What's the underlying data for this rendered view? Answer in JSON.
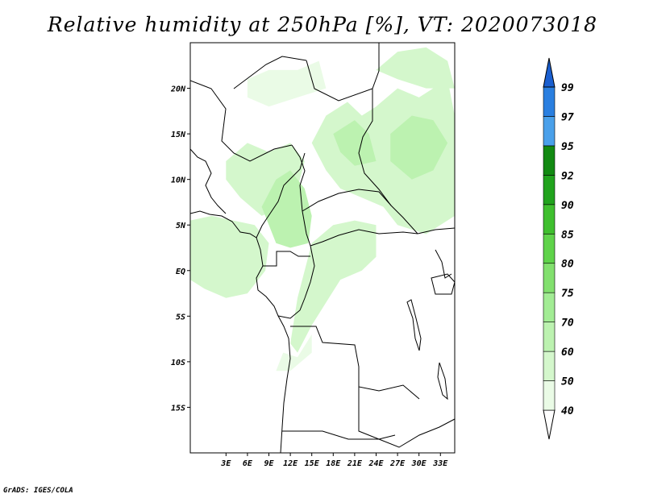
{
  "title": "Relative humidity at 250hPa [%], VT: 2020073018",
  "credit": "GrADS: IGES/COLA",
  "map": {
    "lon_range": [
      -2,
      35
    ],
    "lat_range": [
      -20,
      25
    ],
    "lat_ticks": [
      {
        "value": 20,
        "label": "20N"
      },
      {
        "value": 15,
        "label": "15N"
      },
      {
        "value": 10,
        "label": "10N"
      },
      {
        "value": 5,
        "label": "5N"
      },
      {
        "value": 0,
        "label": "EQ"
      },
      {
        "value": -5,
        "label": "5S"
      },
      {
        "value": -10,
        "label": "10S"
      },
      {
        "value": -15,
        "label": "15S"
      }
    ],
    "lon_ticks": [
      {
        "value": 3,
        "label": "3E"
      },
      {
        "value": 6,
        "label": "6E"
      },
      {
        "value": 9,
        "label": "9E"
      },
      {
        "value": 12,
        "label": "12E"
      },
      {
        "value": 15,
        "label": "15E"
      },
      {
        "value": 18,
        "label": "18E"
      },
      {
        "value": 21,
        "label": "21E"
      },
      {
        "value": 24,
        "label": "24E"
      },
      {
        "value": 27,
        "label": "27E"
      },
      {
        "value": 30,
        "label": "30E"
      },
      {
        "value": 33,
        "label": "33E"
      }
    ]
  },
  "colorbar": {
    "bins": [
      {
        "from": 40,
        "to": 50,
        "color": "#eafbe6"
      },
      {
        "from": 50,
        "to": 60,
        "color": "#d4f7cc"
      },
      {
        "from": 60,
        "to": 70,
        "color": "#bcf2b0"
      },
      {
        "from": 70,
        "to": 75,
        "color": "#a2ec94"
      },
      {
        "from": 75,
        "to": 80,
        "color": "#82e06e"
      },
      {
        "from": 80,
        "to": 85,
        "color": "#5fd34a"
      },
      {
        "from": 85,
        "to": 90,
        "color": "#3fbf2e"
      },
      {
        "from": 90,
        "to": 92,
        "color": "#21a31d"
      },
      {
        "from": 92,
        "to": 95,
        "color": "#128a12"
      },
      {
        "from": 95,
        "to": 97,
        "color": "#4aa0ea"
      },
      {
        "from": 97,
        "to": 99,
        "color": "#2a7fe0"
      }
    ],
    "under_color": "#ffffff",
    "over_color": "#1a5fd0",
    "labels": [
      "40",
      "50",
      "60",
      "70",
      "75",
      "80",
      "85",
      "90",
      "92",
      "95",
      "97",
      "99"
    ]
  },
  "humidity_areas": [
    {
      "name": "humid-area-sahel-east",
      "bin": 50,
      "points": [
        [
          17,
          17
        ],
        [
          20,
          18.5
        ],
        [
          22,
          17
        ],
        [
          24,
          18
        ],
        [
          27,
          20
        ],
        [
          30,
          19
        ],
        [
          34,
          21
        ],
        [
          35,
          17
        ],
        [
          35,
          6
        ],
        [
          31,
          4
        ],
        [
          27,
          5
        ],
        [
          25,
          7
        ],
        [
          22,
          8
        ],
        [
          19,
          9
        ],
        [
          17,
          11
        ],
        [
          15,
          14
        ]
      ]
    },
    {
      "name": "humid-area-northeast-top",
      "bin": 50,
      "points": [
        [
          24,
          22
        ],
        [
          27,
          24
        ],
        [
          31,
          24.5
        ],
        [
          34,
          23
        ],
        [
          35,
          20
        ],
        [
          31,
          20
        ],
        [
          27,
          21
        ]
      ]
    },
    {
      "name": "humid-area-sahel-west",
      "bin": 50,
      "points": [
        [
          3,
          12
        ],
        [
          6,
          14
        ],
        [
          9,
          13
        ],
        [
          12,
          14
        ],
        [
          14,
          12
        ],
        [
          13,
          9
        ],
        [
          11,
          7
        ],
        [
          8,
          6
        ],
        [
          5,
          8
        ],
        [
          3,
          10
        ]
      ]
    },
    {
      "name": "humid-area-gulf-guinea",
      "bin": 50,
      "points": [
        [
          -2,
          5.5
        ],
        [
          1,
          6
        ],
        [
          4,
          5.5
        ],
        [
          7,
          5
        ],
        [
          9,
          3
        ],
        [
          8.5,
          0
        ],
        [
          6,
          -2.5
        ],
        [
          3,
          -3
        ],
        [
          0,
          -2
        ],
        [
          -2,
          -1
        ]
      ]
    },
    {
      "name": "humid-area-cameroon",
      "bin": 60,
      "points": [
        [
          8,
          7
        ],
        [
          10,
          10
        ],
        [
          12,
          11
        ],
        [
          14,
          9
        ],
        [
          15,
          6
        ],
        [
          14.5,
          3
        ],
        [
          12,
          2.5
        ],
        [
          10,
          3
        ],
        [
          9,
          5
        ]
      ]
    },
    {
      "name": "humid-area-congo-central",
      "bin": 50,
      "points": [
        [
          15,
          3
        ],
        [
          18,
          5
        ],
        [
          21,
          5.5
        ],
        [
          24,
          5
        ],
        [
          24,
          1.5
        ],
        [
          22,
          0
        ],
        [
          19,
          -1
        ],
        [
          17,
          -3.5
        ],
        [
          15,
          -6
        ],
        [
          13,
          -9
        ],
        [
          12,
          -8
        ],
        [
          13,
          -3
        ]
      ]
    },
    {
      "name": "humid-area-chad-core",
      "bin": 60,
      "points": [
        [
          18,
          15
        ],
        [
          21,
          16.5
        ],
        [
          23,
          15
        ],
        [
          24,
          12
        ],
        [
          21,
          11.5
        ],
        [
          19,
          13
        ]
      ]
    },
    {
      "name": "humid-area-sudan-core",
      "bin": 60,
      "points": [
        [
          26,
          15
        ],
        [
          29,
          17
        ],
        [
          32,
          16.5
        ],
        [
          34,
          14
        ],
        [
          32,
          11
        ],
        [
          29,
          10
        ],
        [
          26,
          12
        ]
      ]
    },
    {
      "name": "humid-area-angola-coast",
      "bin": 40,
      "points": [
        [
          11,
          -9
        ],
        [
          13,
          -9.5
        ],
        [
          15,
          -7
        ],
        [
          15,
          -9
        ],
        [
          12,
          -11
        ],
        [
          10,
          -11
        ]
      ]
    },
    {
      "name": "humid-area-sahara-north",
      "bin": 40,
      "points": [
        [
          6,
          21
        ],
        [
          9,
          22
        ],
        [
          13,
          22
        ],
        [
          16,
          23
        ],
        [
          17,
          20
        ],
        [
          13,
          19
        ],
        [
          9,
          18
        ],
        [
          6,
          19
        ]
      ]
    }
  ]
}
